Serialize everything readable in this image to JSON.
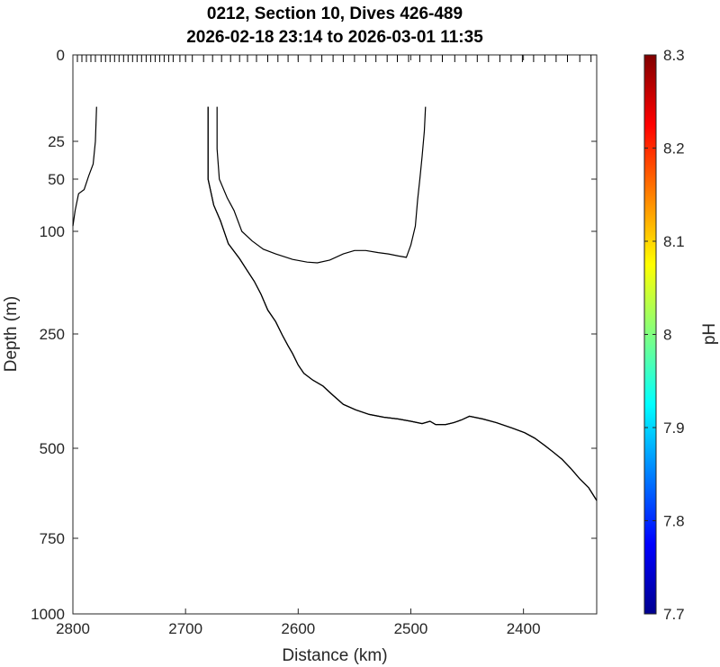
{
  "chart_data": {
    "type": "contour",
    "title_line1": "0212, Section 10, Dives 426-489",
    "title_line2": "2026-02-18 23:14 to 2026-03-01 11:35",
    "xlabel": "Distance (km)",
    "ylabel": "Depth (m)",
    "xlim": [
      2800,
      2335
    ],
    "x_reversed": true,
    "ylim": [
      0,
      1000
    ],
    "y_reversed": true,
    "y_scale": "nonlinear (stretched near surface)",
    "grid": false,
    "x_ticks": [
      {
        "value": 2800,
        "label": "2800"
      },
      {
        "value": 2700,
        "label": "2700"
      },
      {
        "value": 2600,
        "label": "2600"
      },
      {
        "value": 2500,
        "label": "2500"
      },
      {
        "value": 2400,
        "label": "2400"
      }
    ],
    "y_ticks": [
      {
        "value": 0,
        "label": "0"
      },
      {
        "value": 25,
        "label": "25"
      },
      {
        "value": 50,
        "label": "50"
      },
      {
        "value": 100,
        "label": "100"
      },
      {
        "value": 250,
        "label": "250"
      },
      {
        "value": 500,
        "label": "500"
      },
      {
        "value": 750,
        "label": "750"
      },
      {
        "value": 1000,
        "label": "1000"
      }
    ],
    "dive_markers_km": [
      2796,
      2792,
      2788,
      2784,
      2780,
      2775,
      2771,
      2767,
      2763,
      2759,
      2755,
      2751,
      2747,
      2743,
      2739,
      2735,
      2731,
      2727,
      2723,
      2719,
      2715,
      2711,
      2705,
      2700,
      2694,
      2684,
      2676,
      2668,
      2660,
      2652,
      2645,
      2637,
      2627,
      2618,
      2609,
      2600,
      2589,
      2579,
      2569,
      2560,
      2550,
      2540,
      2531,
      2521,
      2512,
      2502,
      2492,
      2482,
      2472,
      2461,
      2451,
      2441,
      2431,
      2421,
      2411,
      2401,
      2391,
      2381,
      2371,
      2361,
      2350,
      2340
    ],
    "contours": [
      {
        "segments": [
          [
            [
              2779,
              15
            ],
            [
              2780,
              25
            ],
            [
              2782,
              40
            ],
            [
              2786,
              48
            ],
            [
              2790,
              60
            ],
            [
              2795,
              64
            ],
            [
              2798,
              80
            ],
            [
              2800,
              95
            ]
          ]
        ]
      },
      {
        "segments": [
          [
            [
              2672,
              15
            ],
            [
              2672,
              30
            ],
            [
              2670,
              50
            ],
            [
              2663,
              68
            ],
            [
              2657,
              80
            ],
            [
              2650,
              100
            ],
            [
              2641,
              114
            ],
            [
              2631,
              126
            ],
            [
              2620,
              133
            ],
            [
              2605,
              141
            ],
            [
              2592,
              145
            ],
            [
              2583,
              146
            ],
            [
              2572,
              142
            ],
            [
              2560,
              133
            ],
            [
              2550,
              128
            ],
            [
              2540,
              128
            ],
            [
              2529,
              131
            ],
            [
              2520,
              133
            ],
            [
              2511,
              136
            ],
            [
              2504,
              138
            ],
            [
              2500,
              120
            ],
            [
              2496,
              95
            ],
            [
              2494,
              70
            ],
            [
              2492,
              50
            ],
            [
              2490,
              35
            ],
            [
              2488,
              22
            ],
            [
              2487,
              15
            ]
          ]
        ]
      },
      {
        "segments": [
          [
            [
              2680,
              15
            ],
            [
              2680,
              50
            ],
            [
              2675,
              75
            ],
            [
              2669,
              90
            ],
            [
              2662,
              118
            ],
            [
              2652,
              140
            ],
            [
              2645,
              158
            ],
            [
              2639,
              173
            ],
            [
              2633,
              192
            ],
            [
              2627,
              215
            ],
            [
              2620,
              232
            ],
            [
              2614,
              253
            ],
            [
              2609,
              276
            ],
            [
              2605,
              293
            ],
            [
              2600,
              318
            ],
            [
              2595,
              336
            ],
            [
              2587,
              351
            ],
            [
              2578,
              364
            ],
            [
              2571,
              380
            ],
            [
              2560,
              404
            ],
            [
              2549,
              416
            ],
            [
              2537,
              426
            ],
            [
              2524,
              432
            ],
            [
              2511,
              436
            ],
            [
              2500,
              441
            ],
            [
              2490,
              446
            ],
            [
              2483,
              441
            ],
            [
              2478,
              448
            ],
            [
              2469,
              448
            ],
            [
              2462,
              444
            ],
            [
              2455,
              438
            ],
            [
              2448,
              430
            ],
            [
              2436,
              436
            ],
            [
              2424,
              444
            ],
            [
              2410,
              456
            ],
            [
              2399,
              466
            ],
            [
              2390,
              478
            ],
            [
              2381,
              494
            ],
            [
              2373,
              512
            ],
            [
              2366,
              530
            ],
            [
              2358,
              556
            ],
            [
              2350,
              585
            ],
            [
              2342,
              610
            ],
            [
              2335,
              645
            ]
          ]
        ]
      },
      {
        "segments": [
          [
            [
              2680,
              15
            ],
            [
              2680,
              50
            ],
            [
              2675,
              75
            ],
            [
              2669,
              90
            ],
            [
              2662,
              118
            ],
            [
              2652,
              140
            ],
            [
              2645,
              158
            ],
            [
              2639,
              173
            ],
            [
              2633,
              192
            ],
            [
              2627,
              215
            ],
            [
              2620,
              232
            ],
            [
              2614,
              253
            ],
            [
              2609,
              276
            ],
            [
              2605,
              293
            ],
            [
              2600,
              318
            ],
            [
              2595,
              336
            ],
            [
              2587,
              351
            ],
            [
              2578,
              364
            ],
            [
              2571,
              380
            ],
            [
              2560,
              404
            ],
            [
              2549,
              416
            ],
            [
              2537,
              426
            ],
            [
              2524,
              432
            ],
            [
              2511,
              436
            ],
            [
              2500,
              441
            ],
            [
              2490,
              446
            ],
            [
              2483,
              441
            ],
            [
              2478,
              448
            ],
            [
              2469,
              448
            ],
            [
              2462,
              444
            ],
            [
              2455,
              438
            ],
            [
              2448,
              430
            ],
            [
              2436,
              436
            ],
            [
              2424,
              444
            ],
            [
              2410,
              456
            ],
            [
              2399,
              466
            ],
            [
              2390,
              478
            ],
            [
              2381,
              494
            ],
            [
              2373,
              512
            ],
            [
              2366,
              530
            ],
            [
              2358,
              556
            ],
            [
              2350,
              585
            ],
            [
              2342,
              610
            ],
            [
              2335,
              645
            ]
          ]
        ]
      }
    ],
    "colorbar": {
      "label": "pH",
      "min": 7.7,
      "max": 8.3,
      "ticks": [
        {
          "value": 7.7,
          "label": "7.7"
        },
        {
          "value": 7.8,
          "label": "7.8"
        },
        {
          "value": 7.9,
          "label": "7.9"
        },
        {
          "value": 8.0,
          "label": "8"
        },
        {
          "value": 8.1,
          "label": "8.1"
        },
        {
          "value": 8.2,
          "label": "8.2"
        },
        {
          "value": 8.3,
          "label": "8.3"
        }
      ],
      "colormap": "jet",
      "colors": [
        "#00008f",
        "#0000ff",
        "#0080ff",
        "#00ffff",
        "#80ff80",
        "#ffff00",
        "#ff8000",
        "#ff0000",
        "#800000"
      ]
    }
  }
}
